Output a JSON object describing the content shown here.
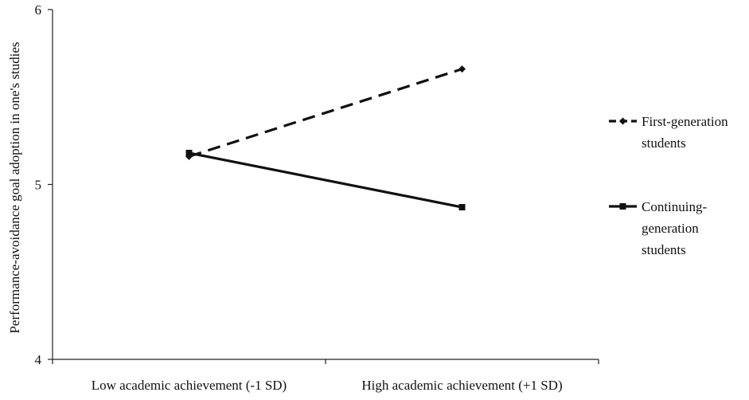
{
  "chart_data": {
    "type": "line",
    "title": "",
    "xlabel": "",
    "ylabel": "Performance-avoidance goal adoption in one's studies",
    "categories": [
      "Low academic achievement (-1 SD)",
      "High academic achievement (+1 SD)"
    ],
    "ylim": [
      4,
      6
    ],
    "yticks": [
      4,
      5,
      6
    ],
    "grid": false,
    "legend_position": "right",
    "series": [
      {
        "name": "First-generation students",
        "values": [
          5.16,
          5.66
        ],
        "style": "dashed",
        "marker": "diamond",
        "color": "#111111"
      },
      {
        "name": "Continuing-generation students",
        "values": [
          5.18,
          4.87
        ],
        "style": "solid",
        "marker": "square",
        "color": "#111111"
      }
    ]
  },
  "legend": {
    "items": [
      {
        "lines": [
          "First-generation",
          "students"
        ]
      },
      {
        "lines": [
          "Continuing-",
          "generation",
          "students"
        ]
      }
    ]
  }
}
